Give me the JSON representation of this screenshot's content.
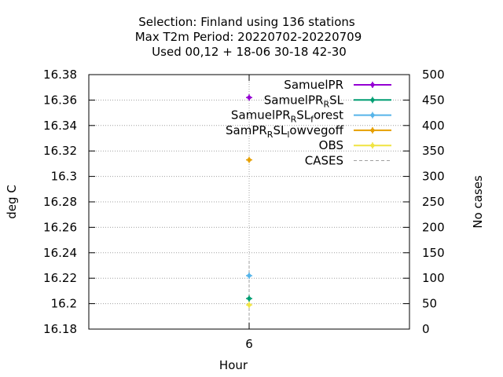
{
  "title_lines": [
    "Selection: Finland using   136 stations",
    "Max T2m   Period: 20220702-20220709",
    "Used  00,12  + 18-06 30-18 42-30"
  ],
  "chart_data": {
    "type": "scatter",
    "xlabel": "Hour",
    "ylabel": "deg C",
    "y2label": "No cases",
    "x_ticks": [
      "6"
    ],
    "y_ticks": [
      "16.38",
      "16.36",
      "16.34",
      "16.32",
      "16.3",
      "16.28",
      "16.26",
      "16.24",
      "16.22",
      "16.2",
      "16.18"
    ],
    "y2_ticks": [
      "500",
      "450",
      "400",
      "350",
      "300",
      "250",
      "200",
      "150",
      "100",
      "50",
      "0"
    ],
    "ylim": [
      16.18,
      16.38
    ],
    "y2lim": [
      0,
      500
    ],
    "xlim": [
      0,
      12
    ],
    "grid": true,
    "legend_position": "top-right",
    "series": [
      {
        "name": "SamuelPR",
        "name_parts": [
          [
            "SamuelPR",
            ""
          ]
        ],
        "color": "#9400d3",
        "x": [
          6
        ],
        "y": [
          16.362
        ]
      },
      {
        "name": "SamuelPR_RSL",
        "name_parts": [
          [
            "SamuelPR",
            ""
          ],
          [
            "R",
            "sub"
          ],
          [
            "SL",
            ""
          ]
        ],
        "color": "#009e73",
        "x": [
          6
        ],
        "y": [
          16.204
        ]
      },
      {
        "name": "SamuelPR_RSL_forest",
        "name_parts": [
          [
            "SamuelPR",
            ""
          ],
          [
            "R",
            "sub"
          ],
          [
            "SL",
            ""
          ],
          [
            "f",
            "sub"
          ],
          [
            "orest",
            ""
          ]
        ],
        "color": "#56b4e9",
        "x": [
          6
        ],
        "y": [
          16.222
        ]
      },
      {
        "name": "SamPR_RSL_lowvegoff",
        "name_parts": [
          [
            "SamPR",
            ""
          ],
          [
            "R",
            "sub"
          ],
          [
            "SL",
            ""
          ],
          [
            "l",
            "sub"
          ],
          [
            "owvegoff",
            ""
          ]
        ],
        "color": "#e69f00",
        "x": [
          6
        ],
        "y": [
          16.313
        ]
      },
      {
        "name": "OBS",
        "name_parts": [
          [
            "OBS",
            ""
          ]
        ],
        "color": "#f0e442",
        "x": [
          6
        ],
        "y": [
          16.199
        ]
      }
    ],
    "cases": {
      "name": "CASES",
      "color": "#a0a0a0",
      "x": [
        6
      ],
      "y": [
        136
      ]
    }
  }
}
